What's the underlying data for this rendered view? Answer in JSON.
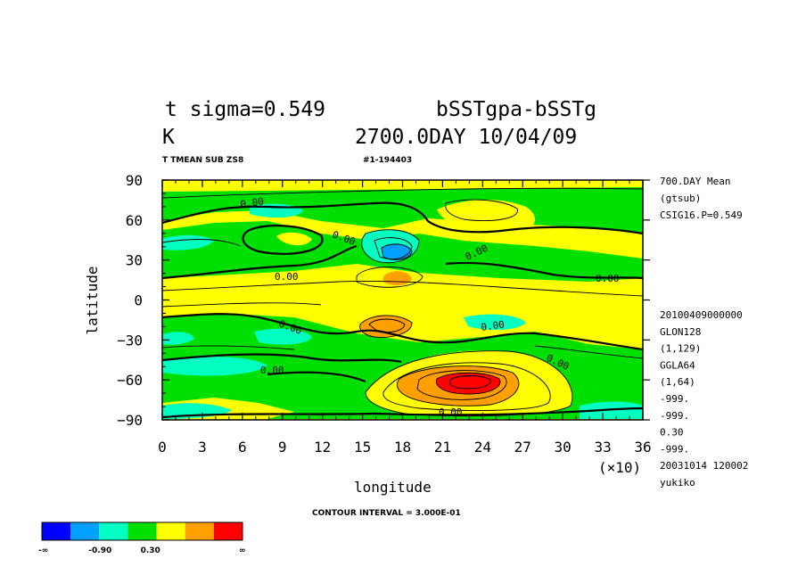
{
  "title": {
    "line1_left": "t sigma=0.549",
    "line1_right": "bSSTgpa-bSSTg",
    "line2_left": "K",
    "line2_right": "2700.0DAY 10/04/09",
    "sub_left": "T TMEAN SUB ZS8",
    "sub_right": "#1-194403"
  },
  "right_info": {
    "top": [
      "700.DAY Mean",
      "(gtsub)",
      "CSIG16.P=0.549"
    ],
    "bottom": [
      "20100409000000",
      "GLON128",
      "(1,129)",
      "GGLA64",
      "(1,64)",
      "-999.",
      "-999.",
      "0.30",
      "-999.",
      "20031014 120002",
      "yukiko"
    ]
  },
  "footer": {
    "contour_interval": "CONTOUR INTERVAL = 3.000E-01"
  },
  "colorbar": {
    "colors": [
      "#0000ff",
      "#00a0ff",
      "#00ffc0",
      "#00e000",
      "#ffff00",
      "#ffa000",
      "#ff0000"
    ],
    "labels": [
      "-∞",
      "-0.90",
      "0.30",
      "∞"
    ]
  },
  "chart_data": {
    "type": "heatmap",
    "subtype": "filled contour",
    "xlabel": "longitude",
    "ylabel": "latitude",
    "x_multiplier": "(×10)",
    "xlim": [
      0,
      36
    ],
    "ylim": [
      -90,
      90
    ],
    "xticks": [
      "0",
      "3",
      "6",
      "9",
      "12",
      "15",
      "18",
      "21",
      "24",
      "27",
      "30",
      "33",
      "36"
    ],
    "yticks": [
      "90",
      "60",
      "30",
      "0",
      "−30",
      "−60",
      "−90"
    ],
    "contour_labels": [
      "0.00",
      "0.00",
      "0.00",
      "0.00",
      "0.00",
      "0.00",
      "0.00",
      "0.00",
      "0.00",
      "0.00"
    ],
    "contour_interval": 0.3,
    "levels": [
      -0.9,
      -0.6,
      -0.3,
      0.0,
      0.3,
      0.6,
      0.9
    ],
    "features": [
      {
        "kind": "maximum",
        "lon": 23,
        "lat": -60,
        "value": 2.4
      },
      {
        "kind": "maximum",
        "lon": 17,
        "lat": -18,
        "value": 1.2
      },
      {
        "kind": "maximum",
        "lon": 17.5,
        "lat": 17,
        "value": 0.9
      },
      {
        "kind": "minimum",
        "lon": 18,
        "lat": 34,
        "value": -1.2
      },
      {
        "kind": "maximum",
        "lon": 9,
        "lat": 43,
        "value": 0.3
      },
      {
        "kind": "maximum",
        "lon": 25,
        "lat": 66,
        "value": 0.3
      }
    ]
  }
}
